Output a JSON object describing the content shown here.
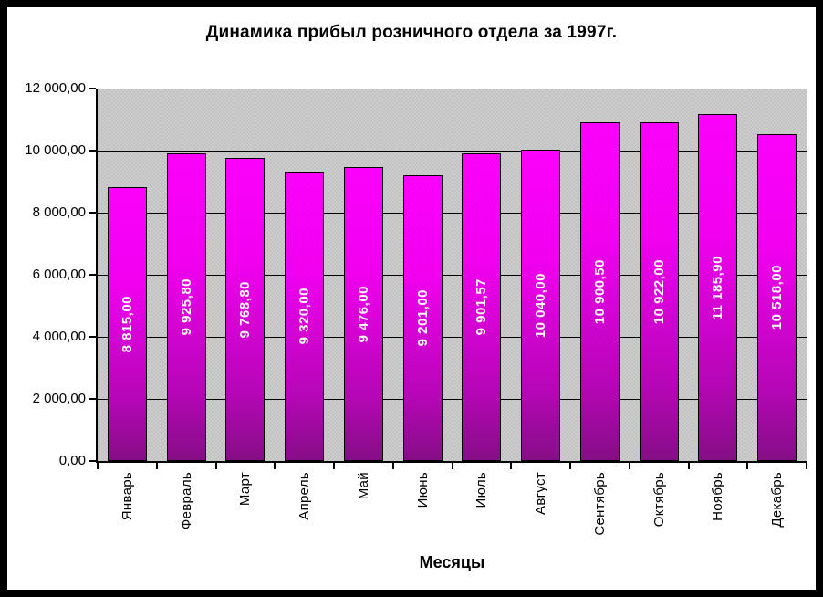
{
  "chart_data": {
    "type": "bar",
    "title": "Динамика прибыл розничного отдела за 1997г.",
    "xlabel": "Месяцы",
    "ylabel": "",
    "categories": [
      "Январь",
      "Февраль",
      "Март",
      "Апрель",
      "Май",
      "Июнь",
      "Июль",
      "Август",
      "Сентябрь",
      "Октябрь",
      "Ноябрь",
      "Декабрь"
    ],
    "values": [
      8815.0,
      9925.8,
      9768.8,
      9320.0,
      9476.0,
      9201.0,
      9901.57,
      10040.0,
      10900.5,
      10922.0,
      11185.9,
      10518.0
    ],
    "value_labels": [
      "8 815,00",
      "9 925,80",
      "9 768,80",
      "9 320,00",
      "9 476,00",
      "9 201,00",
      "9 901,57",
      "10 040,00",
      "10 900,50",
      "10 922,00",
      "11 185,90",
      "10 518,00"
    ],
    "y_tick_labels_top_to_bottom": [
      "12 000,00",
      "10 000,00",
      "8 000,00",
      "6 000,00",
      "4 000,00",
      "2 000,00",
      "0,00"
    ],
    "ylim": [
      0,
      12000
    ],
    "y_step": 2000,
    "grid": true,
    "legend": "none",
    "bar_label_rotation": "90deg-ccw",
    "x_label_rotation": "90deg-ccw",
    "colors": {
      "bar_gradient_top": "#ff00ff",
      "bar_gradient_bottom": "#870e87",
      "bar_border": "#000000",
      "plot_background": "#cdcdcd",
      "plot_pattern_dots": "#a2a2a2",
      "gridline": "#000000",
      "axis": "#000000",
      "value_label_text": "#ffffff",
      "text": "#000000",
      "frame_border": "#000000",
      "page_background": "#ffffff"
    }
  }
}
